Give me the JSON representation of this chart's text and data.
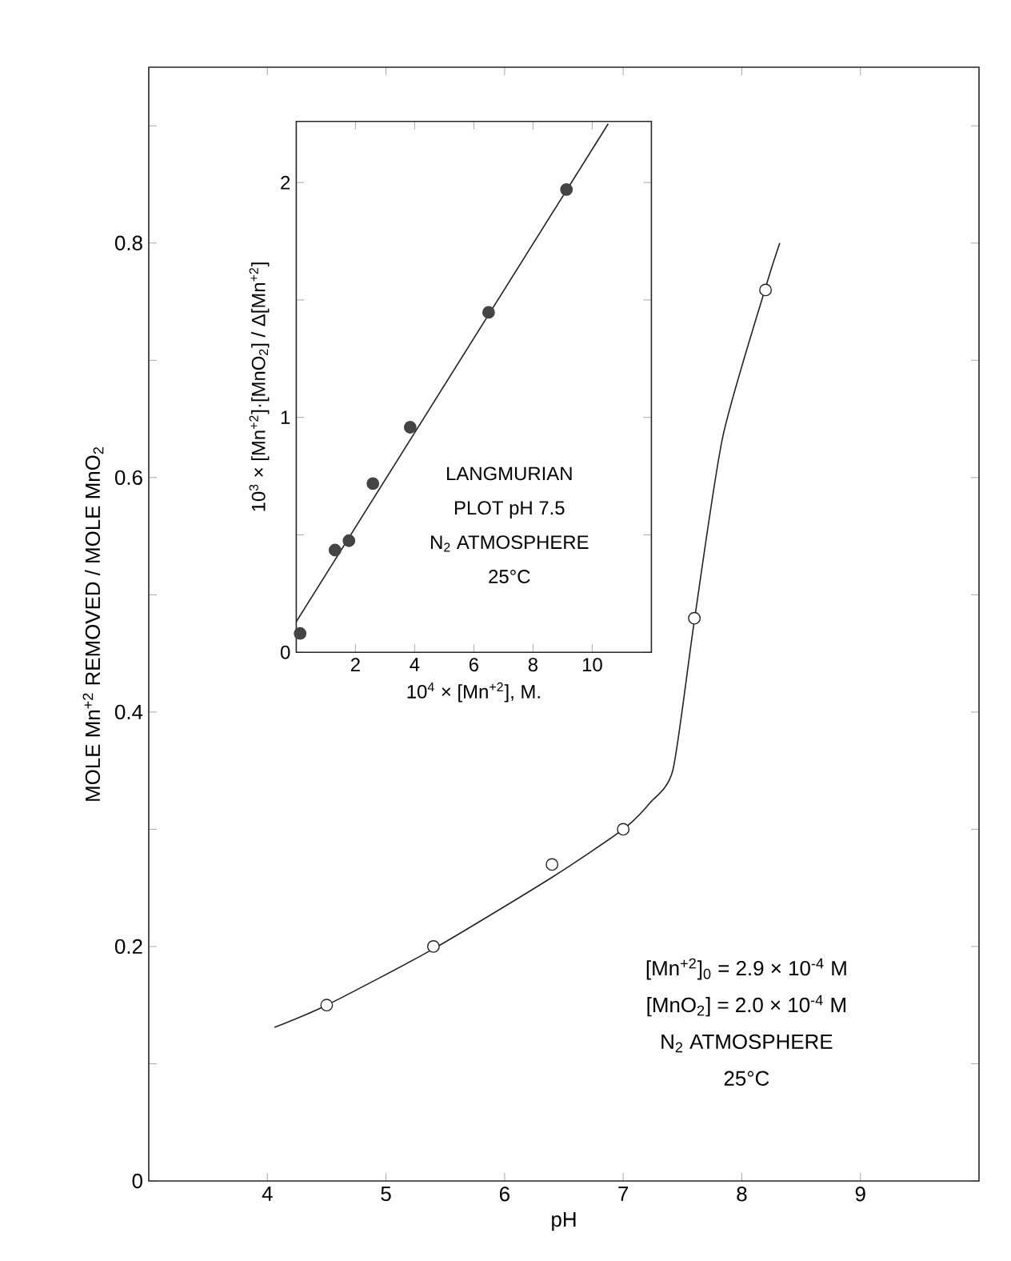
{
  "chart_data": [
    {
      "type": "line",
      "xlabel": "pH",
      "ylabel": "MOLE  Mn$^{+2}$  REMOVED / MOLE  MnO$_{2}$",
      "xlim": [
        3,
        10
      ],
      "ylim": [
        0,
        0.95
      ],
      "xticks": [
        4,
        5,
        6,
        7,
        8,
        9
      ],
      "yticks": [
        0,
        {
          "value": 0.1,
          "label": null
        },
        0.2,
        {
          "value": 0.3,
          "label": null
        },
        0.4,
        {
          "value": 0.5,
          "label": null
        },
        0.6,
        {
          "value": 0.7,
          "label": null
        },
        0.8,
        {
          "value": 0.9,
          "label": null
        }
      ],
      "series": [
        {
          "type": "scatter",
          "marker": "circle",
          "color": "#222222",
          "x": [
            4.5,
            5.4,
            6.4,
            7.0,
            7.6,
            8.2
          ],
          "values": [
            0.15,
            0.2,
            0.27,
            0.3,
            0.48,
            0.76
          ]
        },
        {
          "marker": "none",
          "color": "#222222",
          "x": [
            4.06,
            4.5,
            5.4,
            6.4,
            7.0,
            7.23,
            7.42,
            7.6,
            7.84,
            8.2,
            8.32
          ],
          "values": [
            0.131,
            0.15,
            0.198,
            0.259,
            0.3,
            0.323,
            0.351,
            0.478,
            0.635,
            0.762,
            0.8
          ]
        }
      ],
      "annotations": [
        "[Mn$^{+2}$]$_{0}$ = 2.9 × 10$^{-4}$ M",
        "[MnO$_{2}$] = 2.0 × 10$^{-4}$ M",
        "N$_{2}$  ATMOSPHERE",
        "25°C"
      ]
    },
    {
      "type": "line",
      "xlabel": "10$^{4}$ × [Mn$^{+2}$], M.",
      "ylabel": "10$^{3}$ × [Mn$^{+2}$]·[MnO$_{2}$] / Δ[Mn$^{+2}$]",
      "xlim": [
        0,
        12
      ],
      "ylim": [
        0,
        2.26
      ],
      "xticks": [
        2,
        4,
        6,
        8,
        10
      ],
      "yticks": [
        0,
        {
          "value": 0.5,
          "label": null
        },
        1,
        {
          "value": 1.5,
          "label": null
        },
        2
      ],
      "series": [
        {
          "type": "scatter",
          "marker": "circle",
          "color": "#444444",
          "x": [
            0.13,
            1.31,
            1.78,
            2.59,
            3.85,
            6.5,
            9.13
          ],
          "values": [
            0.08,
            0.435,
            0.475,
            0.718,
            0.958,
            1.447,
            1.97
          ]
        },
        {
          "marker": "none",
          "color": "#222222",
          "x": [
            0,
            10.54
          ],
          "values": [
            0.13,
            2.25
          ]
        }
      ],
      "annotations": [
        "LANGMURIAN",
        "PLOT  pH 7.5",
        "N$_{2}$ ATMOSPHERE",
        "25°C"
      ]
    }
  ]
}
